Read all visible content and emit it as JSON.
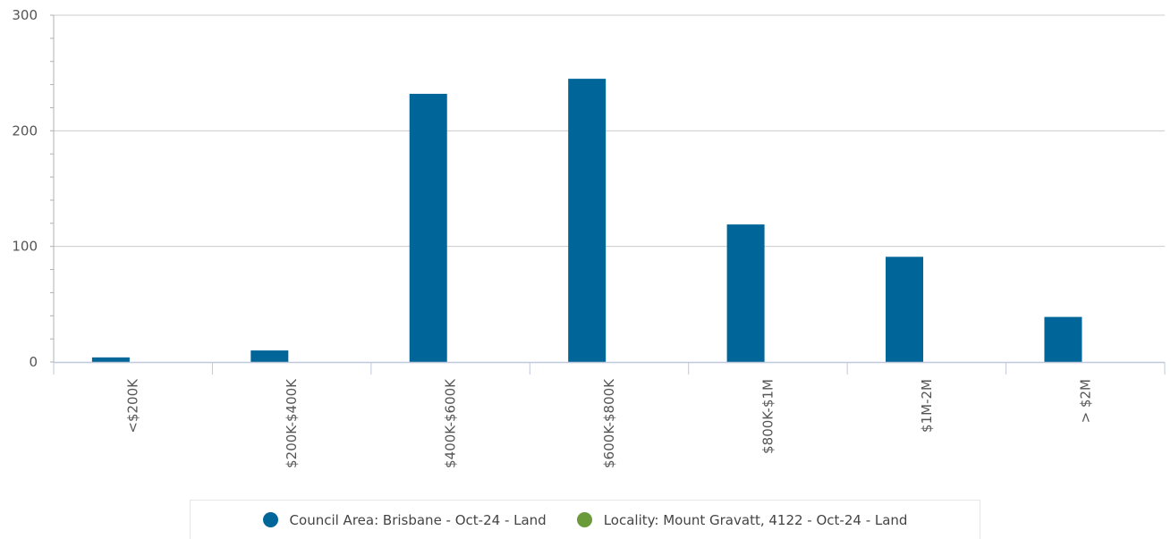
{
  "chart_data": {
    "type": "bar",
    "categories": [
      "<$200K",
      "$200K-$400K",
      "$400K-$600K",
      "$600K-$800K",
      "$800K-$1M",
      "$1M-2M",
      "> $2M"
    ],
    "series": [
      {
        "name": "Council Area: Brisbane - Oct-24 - Land",
        "color": "#006699",
        "values": [
          4,
          10,
          232,
          245,
          119,
          91,
          39
        ]
      },
      {
        "name": "Locality: Mount Gravatt, 4122 - Oct-24 - Land",
        "color": "#6a9a3a",
        "values": [
          0,
          0,
          0,
          0,
          0,
          0,
          0
        ]
      }
    ],
    "yticks": [
      "0",
      "100",
      "200",
      "300"
    ],
    "ylim": [
      0,
      300
    ],
    "grid": true,
    "legend_position": "bottom-center"
  }
}
